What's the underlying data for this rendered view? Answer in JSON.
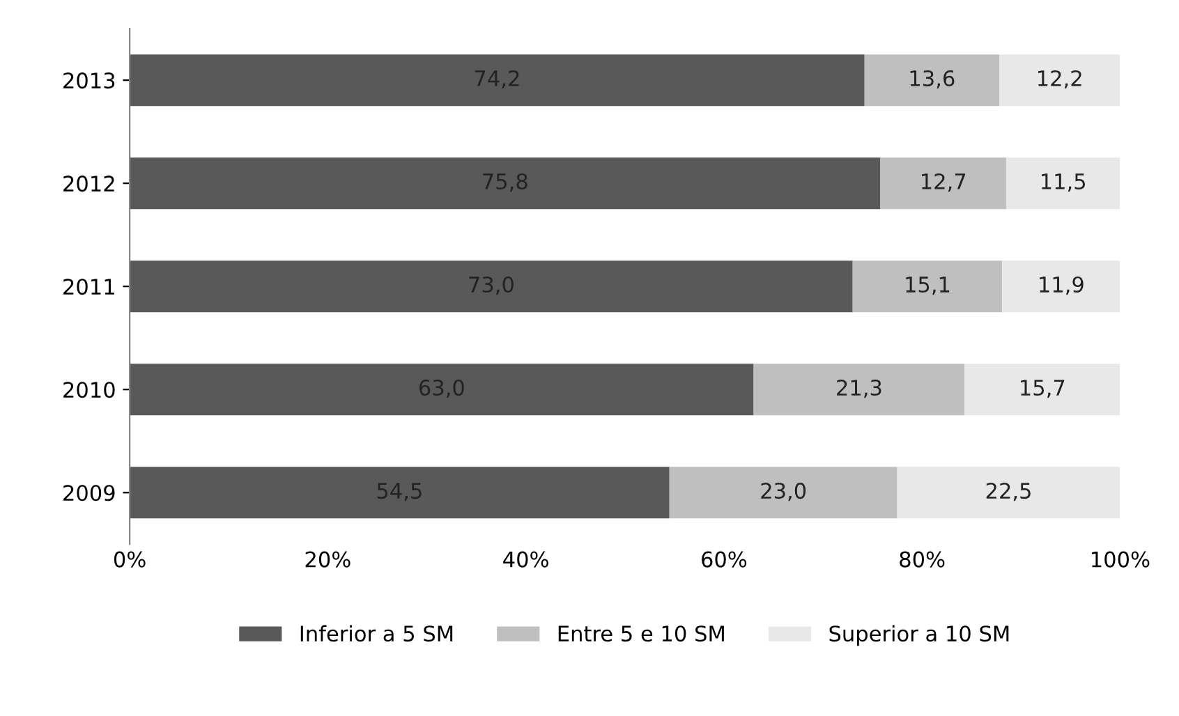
{
  "chart_data": {
    "type": "bar",
    "orientation": "horizontal",
    "stacked": true,
    "categories": [
      "2013",
      "2012",
      "2011",
      "2010",
      "2009"
    ],
    "series": [
      {
        "name": "Inferior a 5 SM",
        "color": "#595959",
        "values": [
          74.2,
          75.8,
          73.0,
          63.0,
          54.5
        ],
        "value_labels": [
          "74,2",
          "75,8",
          "73,0",
          "63,0",
          "54,5"
        ]
      },
      {
        "name": "Entre 5 e 10 SM",
        "color": "#bfbfbf",
        "values": [
          13.6,
          12.7,
          15.1,
          21.3,
          23.0
        ],
        "value_labels": [
          "13,6",
          "12,7",
          "15,1",
          "21,3",
          "23,0"
        ]
      },
      {
        "name": "Superior a 10 SM",
        "color": "#e8e8e8",
        "values": [
          12.2,
          11.5,
          11.9,
          15.7,
          22.5
        ],
        "value_labels": [
          "12,2",
          "11,5",
          "11,9",
          "15,7",
          "22,5"
        ]
      }
    ],
    "xlim": [
      0,
      100
    ],
    "xticks": [
      {
        "value": 0,
        "label": "0%"
      },
      {
        "value": 20,
        "label": "20%"
      },
      {
        "value": 40,
        "label": "40%"
      },
      {
        "value": 60,
        "label": "60%"
      },
      {
        "value": 80,
        "label": "80%"
      },
      {
        "value": 100,
        "label": "100%"
      }
    ],
    "grid": false,
    "legend": "bottom"
  }
}
